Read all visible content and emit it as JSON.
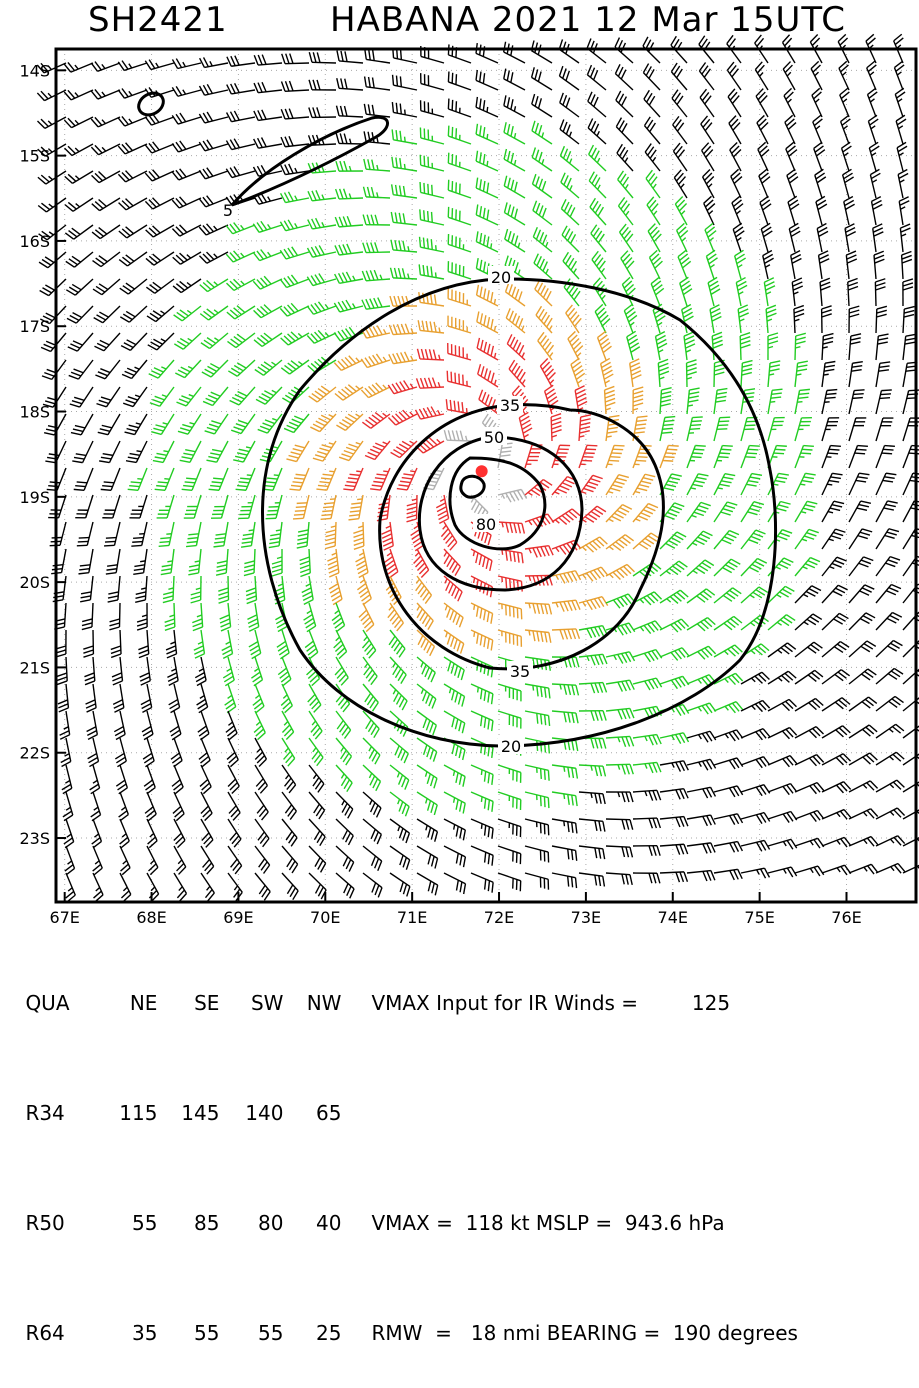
{
  "header": {
    "storm_id": "SH2421",
    "storm_title": "HABANA 2021 12 Mar 15UTC"
  },
  "map": {
    "lon_range": [
      66.9,
      76.8
    ],
    "lat_range": [
      -23.75,
      -13.75
    ],
    "lat_ticks": [
      {
        "value": -14,
        "label": "14S"
      },
      {
        "value": -15,
        "label": "15S"
      },
      {
        "value": -16,
        "label": "16S"
      },
      {
        "value": -17,
        "label": "17S"
      },
      {
        "value": -18,
        "label": "18S"
      },
      {
        "value": -19,
        "label": "19S"
      },
      {
        "value": -20,
        "label": "20S"
      },
      {
        "value": -21,
        "label": "21S"
      },
      {
        "value": -22,
        "label": "22S"
      },
      {
        "value": -23,
        "label": "23S"
      }
    ],
    "lon_ticks": [
      {
        "value": 67,
        "label": "67E"
      },
      {
        "value": 68,
        "label": "68E"
      },
      {
        "value": 69,
        "label": "69E"
      },
      {
        "value": 70,
        "label": "70E"
      },
      {
        "value": 71,
        "label": "71E"
      },
      {
        "value": 72,
        "label": "72E"
      },
      {
        "value": 73,
        "label": "73E"
      },
      {
        "value": 74,
        "label": "74E"
      },
      {
        "value": 75,
        "label": "75E"
      },
      {
        "value": 76,
        "label": "76E"
      }
    ],
    "center": {
      "lon": 71.8,
      "lat": -18.7
    },
    "contour_labels": [
      "5",
      "20",
      "35",
      "50",
      "80"
    ],
    "wind_colors": {
      "calm": "#000000",
      "gale": "#22cc22",
      "storm": "#e8a030",
      "hurricane": "#e83030",
      "core": "#b0b0b0"
    },
    "center_color": "#ff3030"
  },
  "table": {
    "header": [
      "QUA",
      "NE",
      "SE",
      "SW",
      "NW"
    ],
    "rows": [
      [
        "R34",
        "115",
        "145",
        "140",
        "65"
      ],
      [
        "R50",
        "55",
        "85",
        "80",
        "40"
      ],
      [
        "R64",
        "35",
        "55",
        "55",
        "25"
      ]
    ]
  },
  "info": {
    "vmax_input_label": "VMAX Input for IR Winds =",
    "vmax_input": "125",
    "vmax_line": "VMAX =  118 kt MSLP =  943.6 hPa",
    "rmw_line": "RMW  =   18 nmi BEARING =  190 degrees"
  }
}
